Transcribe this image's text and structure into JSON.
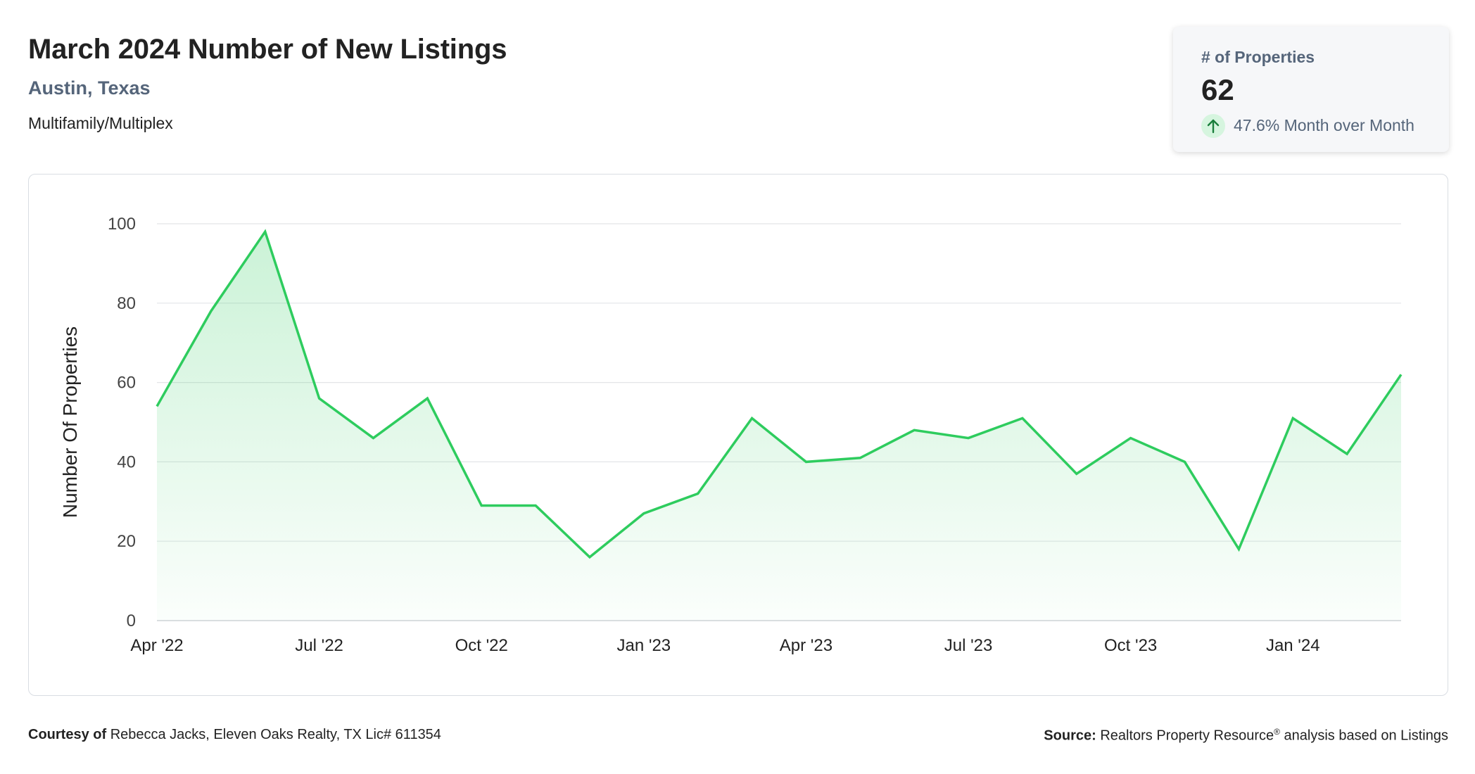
{
  "header": {
    "title": "March 2024 Number of New Listings",
    "location": "Austin, Texas",
    "property_type": "Multifamily/Multiplex"
  },
  "kpi": {
    "label": "# of Properties",
    "value": "62",
    "change": "47.6% Month over Month",
    "change_icon": "arrow-up-icon",
    "change_color": "#1a7f3c"
  },
  "chart_data": {
    "type": "area",
    "ylabel": "Number Of Properties",
    "xlabel": "",
    "ylim": [
      0,
      100
    ],
    "yticks": [
      0,
      20,
      40,
      60,
      80,
      100
    ],
    "grid": true,
    "line_color": "#2ecc5e",
    "fill_color": "#2ecc5e",
    "x": [
      "Apr '22",
      "May '22",
      "Jun '22",
      "Jul '22",
      "Aug '22",
      "Sep '22",
      "Oct '22",
      "Nov '22",
      "Dec '22",
      "Jan '23",
      "Feb '23",
      "Mar '23",
      "Apr '23",
      "May '23",
      "Jun '23",
      "Jul '23",
      "Aug '23",
      "Sep '23",
      "Oct '23",
      "Nov '23",
      "Dec '23",
      "Jan '24",
      "Feb '24",
      "Mar '24"
    ],
    "values": [
      54,
      78,
      98,
      56,
      46,
      56,
      29,
      29,
      16,
      27,
      32,
      51,
      40,
      41,
      48,
      46,
      51,
      37,
      46,
      40,
      18,
      51,
      42,
      62
    ],
    "xtick_labels": [
      "Apr '22",
      "Jul '22",
      "Oct '22",
      "Jan '23",
      "Apr '23",
      "Jul '23",
      "Oct '23",
      "Jan '24"
    ]
  },
  "footer": {
    "courtesy_label": "Courtesy of",
    "courtesy_text": "Rebecca Jacks, Eleven Oaks Realty, TX Lic# 611354",
    "source_label": "Source:",
    "source_text_1": "Realtors Property Resource",
    "source_reg": "®",
    "source_text_2": " analysis based on Listings"
  }
}
